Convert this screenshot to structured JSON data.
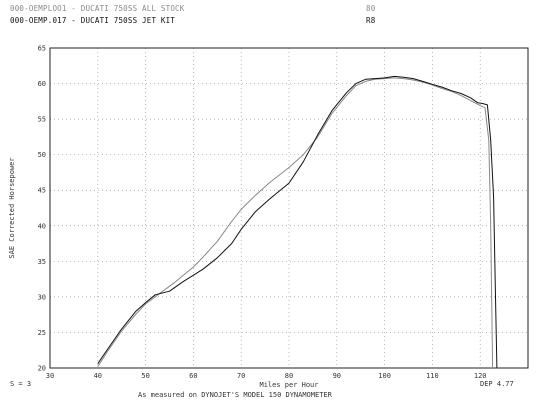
{
  "header": {
    "line1_left": "000-OEMPLOO1 - DUCATI 750SS ALL STOCK",
    "line1_right": "80",
    "line2_left": "000-OEMP.017 - DUCATI 750SS JET KIT",
    "line2_right": "R8"
  },
  "footer": {
    "left": "S = 3",
    "center": "As measured on DYNOJET'S MODEL 150 DYNAMOMETER",
    "right": "DEP 4.77"
  },
  "chart_data": {
    "type": "line",
    "xlabel": "Miles per Hour",
    "ylabel": "SAE Corrected Horsepower",
    "xlim": [
      30,
      130
    ],
    "ylim": [
      20,
      65
    ],
    "x_ticks": [
      30,
      40,
      50,
      60,
      70,
      80,
      90,
      100,
      110,
      120
    ],
    "y_ticks": [
      20,
      25,
      30,
      35,
      40,
      45,
      50,
      55,
      60,
      65
    ],
    "grid": true,
    "series": [
      {
        "name": "000-OEMPLOO1 - DUCATI 750SS ALL STOCK",
        "color": "#888888",
        "points": [
          [
            40,
            20.2
          ],
          [
            42,
            22.3
          ],
          [
            45,
            25.2
          ],
          [
            48,
            27.6
          ],
          [
            50,
            29.0
          ],
          [
            53,
            30.5
          ],
          [
            56,
            32.0
          ],
          [
            60,
            34.2
          ],
          [
            62,
            35.6
          ],
          [
            65,
            37.8
          ],
          [
            68,
            40.6
          ],
          [
            70,
            42.3
          ],
          [
            73,
            44.3
          ],
          [
            76,
            46.1
          ],
          [
            80,
            48.2
          ],
          [
            83,
            50.0
          ],
          [
            86,
            52.5
          ],
          [
            89,
            55.8
          ],
          [
            92,
            58.3
          ],
          [
            94,
            59.7
          ],
          [
            96,
            60.3
          ],
          [
            98,
            60.6
          ],
          [
            100,
            60.7
          ],
          [
            102,
            60.8
          ],
          [
            104,
            60.7
          ],
          [
            106,
            60.5
          ],
          [
            108,
            60.2
          ],
          [
            110,
            59.8
          ],
          [
            112,
            59.3
          ],
          [
            114,
            58.9
          ],
          [
            116,
            58.3
          ],
          [
            118,
            57.6
          ],
          [
            120,
            56.9
          ],
          [
            121,
            56.6
          ],
          [
            121.8,
            52.0
          ],
          [
            122.2,
            40.0
          ],
          [
            122.6,
            20.0
          ]
        ]
      },
      {
        "name": "000-OEMP.017 - DUCATI 750SS JET KIT",
        "color": "#111111",
        "points": [
          [
            40,
            20.6
          ],
          [
            42,
            22.6
          ],
          [
            45,
            25.5
          ],
          [
            48,
            28.0
          ],
          [
            50,
            29.2
          ],
          [
            52,
            30.3
          ],
          [
            55,
            30.8
          ],
          [
            58,
            32.2
          ],
          [
            62,
            33.9
          ],
          [
            65,
            35.5
          ],
          [
            68,
            37.5
          ],
          [
            70,
            39.5
          ],
          [
            73,
            42.0
          ],
          [
            76,
            43.8
          ],
          [
            80,
            46.0
          ],
          [
            83,
            49.0
          ],
          [
            86,
            52.8
          ],
          [
            89,
            56.2
          ],
          [
            92,
            58.7
          ],
          [
            94,
            60.0
          ],
          [
            96,
            60.6
          ],
          [
            98,
            60.7
          ],
          [
            100,
            60.8
          ],
          [
            102,
            61.0
          ],
          [
            104,
            60.9
          ],
          [
            106,
            60.7
          ],
          [
            108,
            60.3
          ],
          [
            110,
            59.9
          ],
          [
            112,
            59.5
          ],
          [
            114,
            59.0
          ],
          [
            116,
            58.6
          ],
          [
            118,
            58.0
          ],
          [
            119.5,
            57.3
          ],
          [
            120.5,
            57.2
          ],
          [
            121.5,
            57.0
          ],
          [
            122.2,
            52.0
          ],
          [
            122.8,
            44.0
          ],
          [
            123.2,
            30.0
          ],
          [
            123.5,
            20.0
          ]
        ]
      }
    ]
  }
}
